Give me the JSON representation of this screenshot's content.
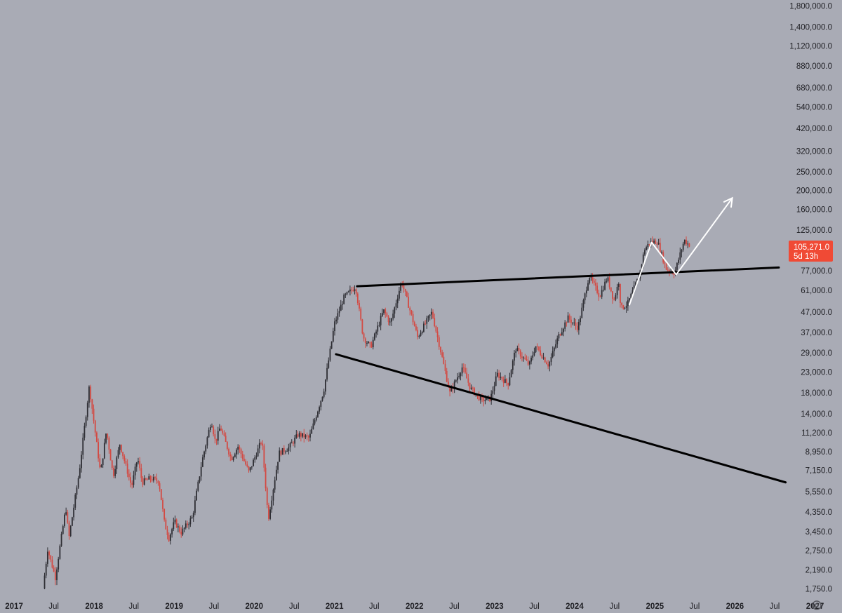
{
  "chart_data": {
    "type": "candlestick",
    "scale": "log",
    "grid": false,
    "ylim": [
      1600,
      1900000
    ],
    "y_ticks": [
      {
        "value": 1750,
        "label": "1,750.0"
      },
      {
        "value": 2190,
        "label": "2,190.0"
      },
      {
        "value": 2750,
        "label": "2,750.0"
      },
      {
        "value": 3450,
        "label": "3,450.0"
      },
      {
        "value": 4350,
        "label": "4,350.0"
      },
      {
        "value": 5550,
        "label": "5,550.0"
      },
      {
        "value": 7150,
        "label": "7,150.0"
      },
      {
        "value": 8950,
        "label": "8,950.0"
      },
      {
        "value": 11200,
        "label": "11,200.0"
      },
      {
        "value": 14000,
        "label": "14,000.0"
      },
      {
        "value": 18000,
        "label": "18,000.0"
      },
      {
        "value": 23000,
        "label": "23,000.0"
      },
      {
        "value": 29000,
        "label": "29,000.0"
      },
      {
        "value": 37000,
        "label": "37,000.0"
      },
      {
        "value": 47000,
        "label": "47,000.0"
      },
      {
        "value": 61000,
        "label": "61,000.0"
      },
      {
        "value": 77000,
        "label": "77,000.0"
      },
      {
        "value": 125000,
        "label": "125,000.0"
      },
      {
        "value": 160000,
        "label": "160,000.0"
      },
      {
        "value": 200000,
        "label": "200,000.0"
      },
      {
        "value": 250000,
        "label": "250,000.0"
      },
      {
        "value": 320000,
        "label": "320,000.0"
      },
      {
        "value": 420000,
        "label": "420,000.0"
      },
      {
        "value": 540000,
        "label": "540,000.0"
      },
      {
        "value": 680000,
        "label": "680,000.0"
      },
      {
        "value": 880000,
        "label": "880,000.0"
      },
      {
        "value": 1120000,
        "label": "1,120,000.0"
      },
      {
        "value": 1400000,
        "label": "1,400,000.0"
      },
      {
        "value": 1800000,
        "label": "1,800,000.0"
      }
    ],
    "x_range": [
      "2016-11-01",
      "2027-05-01"
    ],
    "x_ticks": [
      {
        "date": "2017-01-01",
        "label": "2017",
        "major": true
      },
      {
        "date": "2017-07-01",
        "label": "Jul",
        "major": false
      },
      {
        "date": "2018-01-01",
        "label": "2018",
        "major": true
      },
      {
        "date": "2018-07-01",
        "label": "Jul",
        "major": false
      },
      {
        "date": "2019-01-01",
        "label": "2019",
        "major": true
      },
      {
        "date": "2019-07-01",
        "label": "Jul",
        "major": false
      },
      {
        "date": "2020-01-01",
        "label": "2020",
        "major": true
      },
      {
        "date": "2020-07-01",
        "label": "Jul",
        "major": false
      },
      {
        "date": "2021-01-01",
        "label": "2021",
        "major": true
      },
      {
        "date": "2021-07-01",
        "label": "Jul",
        "major": false
      },
      {
        "date": "2022-01-01",
        "label": "2022",
        "major": true
      },
      {
        "date": "2022-07-01",
        "label": "Jul",
        "major": false
      },
      {
        "date": "2023-01-01",
        "label": "2023",
        "major": true
      },
      {
        "date": "2023-07-01",
        "label": "Jul",
        "major": false
      },
      {
        "date": "2024-01-01",
        "label": "2024",
        "major": true
      },
      {
        "date": "2024-07-01",
        "label": "Jul",
        "major": false
      },
      {
        "date": "2025-01-01",
        "label": "2025",
        "major": true
      },
      {
        "date": "2025-07-01",
        "label": "Jul",
        "major": false
      },
      {
        "date": "2026-01-01",
        "label": "2026",
        "major": true
      },
      {
        "date": "2026-07-01",
        "label": "Jul",
        "major": false
      },
      {
        "date": "2027-01-01",
        "label": "2027",
        "major": true
      }
    ],
    "price_path": [
      [
        "2017-05-20",
        1750
      ],
      [
        "2017-06-10",
        2800
      ],
      [
        "2017-07-15",
        2000
      ],
      [
        "2017-09-01",
        4600
      ],
      [
        "2017-09-15",
        3200
      ],
      [
        "2017-11-01",
        7000
      ],
      [
        "2017-12-17",
        19500
      ],
      [
        "2018-02-06",
        6900
      ],
      [
        "2018-03-05",
        11500
      ],
      [
        "2018-04-05",
        6700
      ],
      [
        "2018-05-05",
        9800
      ],
      [
        "2018-06-28",
        5900
      ],
      [
        "2018-07-25",
        8300
      ],
      [
        "2018-08-15",
        6200
      ],
      [
        "2018-09-20",
        6500
      ],
      [
        "2018-10-30",
        6300
      ],
      [
        "2018-11-25",
        3800
      ],
      [
        "2018-12-15",
        3200
      ],
      [
        "2019-01-10",
        3900
      ],
      [
        "2019-02-08",
        3400
      ],
      [
        "2019-04-01",
        4100
      ],
      [
        "2019-05-15",
        8000
      ],
      [
        "2019-06-26",
        13000
      ],
      [
        "2019-07-15",
        10000
      ],
      [
        "2019-08-06",
        12000
      ],
      [
        "2019-09-25",
        8200
      ],
      [
        "2019-10-26",
        9500
      ],
      [
        "2019-12-15",
        7000
      ],
      [
        "2020-02-12",
        10300
      ],
      [
        "2020-03-12",
        4000
      ],
      [
        "2020-04-30",
        8800
      ],
      [
        "2020-06-15",
        9400
      ],
      [
        "2020-07-27",
        11000
      ],
      [
        "2020-09-15",
        10500
      ],
      [
        "2020-11-20",
        18500
      ],
      [
        "2021-01-08",
        41000
      ],
      [
        "2021-02-20",
        56000
      ],
      [
        "2021-04-14",
        64000
      ],
      [
        "2021-05-19",
        35000
      ],
      [
        "2021-06-22",
        31000
      ],
      [
        "2021-08-20",
        48000
      ],
      [
        "2021-09-20",
        41000
      ],
      [
        "2021-11-10",
        68000
      ],
      [
        "2022-01-22",
        35000
      ],
      [
        "2022-03-28",
        47000
      ],
      [
        "2022-05-12",
        28000
      ],
      [
        "2022-06-18",
        18000
      ],
      [
        "2022-08-14",
        24500
      ],
      [
        "2022-09-20",
        19000
      ],
      [
        "2022-11-10",
        16500
      ],
      [
        "2022-12-20",
        16800
      ],
      [
        "2023-01-20",
        22500
      ],
      [
        "2023-03-10",
        20000
      ],
      [
        "2023-04-14",
        30500
      ],
      [
        "2023-06-15",
        25000
      ],
      [
        "2023-07-14",
        31500
      ],
      [
        "2023-09-11",
        25000
      ],
      [
        "2023-10-25",
        35000
      ],
      [
        "2023-12-08",
        44000
      ],
      [
        "2024-01-23",
        39000
      ],
      [
        "2024-03-14",
        73000
      ],
      [
        "2024-05-01",
        57000
      ],
      [
        "2024-06-05",
        71000
      ],
      [
        "2024-07-05",
        54000
      ],
      [
        "2024-07-29",
        69000
      ],
      [
        "2024-08-05",
        49000
      ],
      [
        "2024-09-06",
        52000
      ],
      [
        "2024-10-29",
        73000
      ],
      [
        "2024-11-22",
        99500
      ],
      [
        "2024-12-17",
        108000
      ],
      [
        "2025-01-20",
        109000
      ],
      [
        "2025-02-28",
        79000
      ],
      [
        "2025-04-08",
        75000
      ],
      [
        "2025-05-22",
        111000
      ],
      [
        "2025-06-10",
        105271
      ]
    ],
    "trendlines": [
      {
        "name": "resistance",
        "color": "#000000",
        "start": [
          "2021-04-14",
          64000
        ],
        "end": [
          "2026-07-20",
          80000
        ]
      },
      {
        "name": "support",
        "color": "#000000",
        "start": [
          "2021-01-08",
          28500
        ],
        "end": [
          "2026-08-20",
          6200
        ]
      }
    ],
    "projection": {
      "color": "#ffffff",
      "points": [
        [
          "2024-09-06",
          51000
        ],
        [
          "2024-12-17",
          108000
        ],
        [
          "2025-04-08",
          73500
        ],
        [
          "2025-12-20",
          183000
        ]
      ]
    },
    "last_price": {
      "value": 105271,
      "label": "105,271.0",
      "countdown": "5d 13h",
      "color": "#f04a35"
    },
    "colors": {
      "up": "#2e2e34",
      "down": "#d34a43",
      "background": "#a9abb5",
      "axis_text": "#1f1f24"
    }
  },
  "footer": {
    "settings_icon": "gear-icon"
  }
}
